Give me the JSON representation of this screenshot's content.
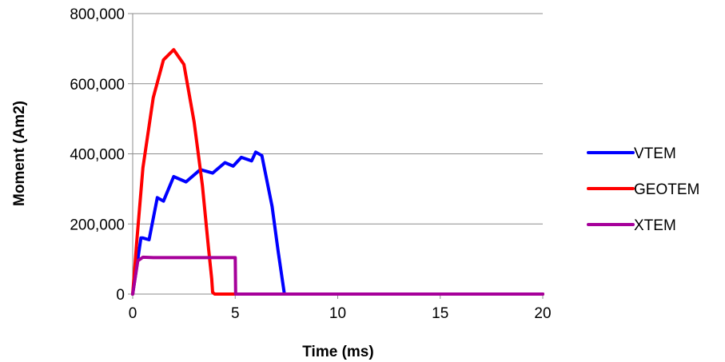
{
  "chart_data": {
    "type": "line",
    "title": "",
    "xlabel": "Time (ms)",
    "ylabel": "Moment (Am2)",
    "xlim": [
      0,
      20
    ],
    "ylim": [
      0,
      800000
    ],
    "x_ticks": [
      0,
      5,
      10,
      15,
      20
    ],
    "x_tick_labels": [
      "0",
      "5",
      "10",
      "15",
      "20"
    ],
    "y_ticks": [
      0,
      200000,
      400000,
      600000,
      800000
    ],
    "y_tick_labels": [
      "0",
      "200,000",
      "400,000",
      "600,000",
      "800,000"
    ],
    "grid": "horizontal",
    "legend_position": "right",
    "series": [
      {
        "name": "VTEM",
        "color": "#0000ff",
        "x": [
          0,
          0.4,
          0.5,
          0.8,
          1.2,
          1.5,
          2.0,
          2.6,
          3.3,
          3.9,
          4.5,
          4.9,
          5.3,
          5.8,
          6.0,
          6.3,
          6.8,
          7.1,
          7.4,
          8.0,
          20
        ],
        "y": [
          0,
          160000,
          160000,
          155000,
          275000,
          265000,
          335000,
          320000,
          355000,
          345000,
          375000,
          365000,
          390000,
          380000,
          405000,
          395000,
          250000,
          120000,
          0,
          0,
          0
        ]
      },
      {
        "name": "GEOTEM",
        "color": "#ff0000",
        "x": [
          0,
          0.2,
          0.5,
          1.0,
          1.5,
          2.0,
          2.5,
          3.0,
          3.4,
          3.7,
          3.85,
          3.9,
          4.0,
          4.5,
          20
        ],
        "y": [
          0,
          150000,
          360000,
          560000,
          668000,
          697000,
          655000,
          490000,
          310000,
          130000,
          45000,
          5000,
          0,
          0,
          0
        ]
      },
      {
        "name": "XTEM",
        "color": "#a6009a",
        "x": [
          0,
          0.25,
          0.5,
          1.0,
          2.0,
          3.0,
          4.0,
          5.0,
          5.02,
          20
        ],
        "y": [
          0,
          95000,
          105000,
          104000,
          104000,
          104000,
          104000,
          104000,
          0,
          0
        ]
      }
    ]
  }
}
